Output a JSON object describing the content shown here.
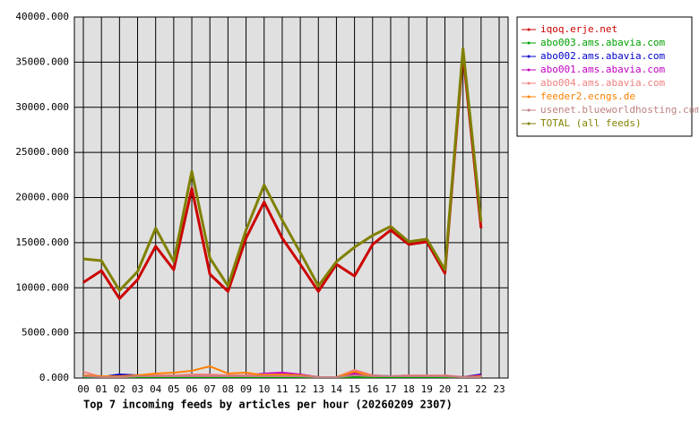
{
  "chart_data": {
    "type": "line",
    "title": "Top 7 incoming feeds by articles per hour (20260209 2307)",
    "categories": [
      "00",
      "01",
      "02",
      "03",
      "04",
      "05",
      "06",
      "07",
      "08",
      "09",
      "10",
      "11",
      "12",
      "13",
      "14",
      "15",
      "16",
      "17",
      "18",
      "19",
      "20",
      "21",
      "22",
      "23"
    ],
    "ylim": [
      0,
      40000
    ],
    "yticks": [
      {
        "value": 0,
        "label": "0.000"
      },
      {
        "value": 5000,
        "label": "5000.000"
      },
      {
        "value": 10000,
        "label": "10000.000"
      },
      {
        "value": 15000,
        "label": "15000.000"
      },
      {
        "value": 20000,
        "label": "20000.000"
      },
      {
        "value": 25000,
        "label": "25000.000"
      },
      {
        "value": 30000,
        "label": "30000.000"
      },
      {
        "value": 35000,
        "label": "35000.000"
      },
      {
        "value": 40000,
        "label": "40000.000"
      }
    ],
    "grid": true,
    "legend": "right",
    "series": [
      {
        "name": "iqoq.erje.net",
        "color": "#cc0000",
        "values": [
          10600,
          11900,
          8800,
          10900,
          14600,
          12000,
          21000,
          11500,
          9600,
          15500,
          19500,
          15500,
          12600,
          9600,
          12600,
          11300,
          14800,
          16400,
          14800,
          15100,
          11600,
          36000,
          16600,
          null
        ]
      },
      {
        "name": "abo003.ams.abavia.com",
        "color": "#00a000",
        "values": [
          100,
          100,
          100,
          100,
          100,
          100,
          100,
          100,
          100,
          100,
          100,
          100,
          100,
          100,
          100,
          100,
          100,
          100,
          100,
          100,
          100,
          100,
          100,
          null
        ]
      },
      {
        "name": "abo002.ams.abavia.com",
        "color": "#0000cc",
        "values": [
          200,
          100,
          400,
          300,
          200,
          300,
          200,
          300,
          300,
          200,
          300,
          400,
          300,
          100,
          100,
          700,
          300,
          200,
          200,
          200,
          200,
          100,
          400,
          null
        ]
      },
      {
        "name": "abo001.ams.abavia.com",
        "color": "#c000c0",
        "values": [
          300,
          200,
          200,
          300,
          300,
          300,
          300,
          300,
          300,
          300,
          500,
          600,
          400,
          100,
          100,
          500,
          200,
          200,
          300,
          300,
          300,
          100,
          300,
          null
        ]
      },
      {
        "name": "abo004.ams.abavia.com",
        "color": "#f08080",
        "values": [
          700,
          100,
          100,
          200,
          300,
          300,
          400,
          400,
          300,
          300,
          400,
          400,
          300,
          100,
          100,
          900,
          300,
          200,
          300,
          300,
          300,
          100,
          200,
          null
        ]
      },
      {
        "name": "feeder2.ecngs.de",
        "color": "#ff8000",
        "values": [
          300,
          200,
          200,
          300,
          500,
          600,
          800,
          1300,
          500,
          600,
          300,
          400,
          300,
          100,
          100,
          700,
          200,
          200,
          200,
          200,
          200,
          100,
          200,
          null
        ]
      },
      {
        "name": "usenet.blueworldhosting.com",
        "color": "#c08080",
        "values": [
          200,
          100,
          100,
          200,
          200,
          200,
          200,
          200,
          200,
          200,
          200,
          200,
          200,
          100,
          100,
          300,
          200,
          200,
          200,
          200,
          200,
          100,
          100,
          null
        ]
      },
      {
        "name": "TOTAL (all feeds)",
        "color": "#808000",
        "values": [
          13200,
          13000,
          9700,
          11800,
          16600,
          12900,
          22900,
          13300,
          10200,
          16400,
          21400,
          17500,
          13900,
          10200,
          12900,
          14500,
          15800,
          16800,
          15100,
          15400,
          12000,
          36500,
          17300,
          null
        ]
      }
    ]
  }
}
